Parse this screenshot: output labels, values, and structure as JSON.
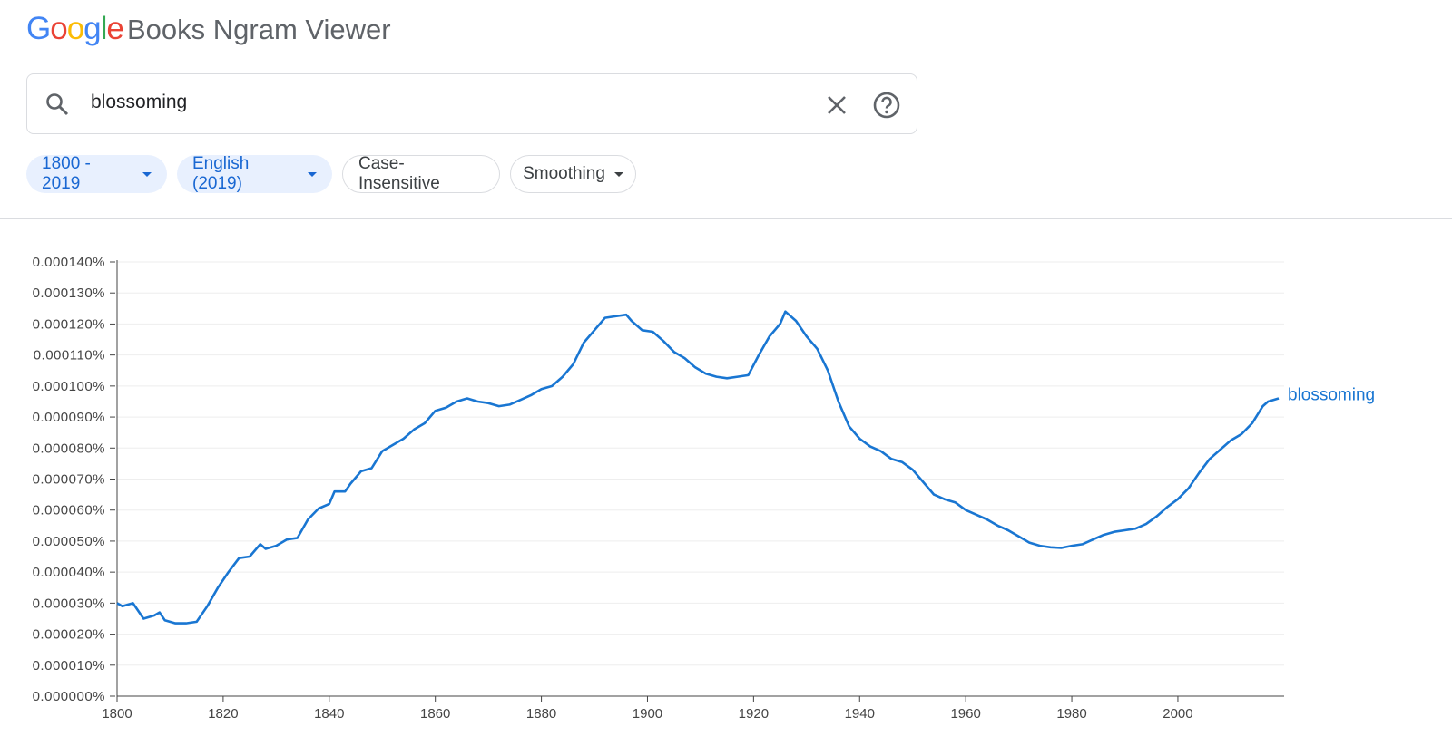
{
  "header": {
    "logo": "Google",
    "title": "Books Ngram Viewer"
  },
  "search": {
    "query": "blossoming"
  },
  "filters": [
    "1800 - 2019",
    "English (2019)",
    "Case-Insensitive",
    "Smoothing"
  ],
  "chart_data": {
    "type": "line",
    "x": [
      1800,
      1801,
      1803,
      1805,
      1807,
      1808,
      1809,
      1811,
      1813,
      1815,
      1817,
      1819,
      1821,
      1823,
      1825,
      1827,
      1828,
      1830,
      1832,
      1834,
      1836,
      1838,
      1840,
      1841,
      1843,
      1844,
      1846,
      1848,
      1850,
      1852,
      1854,
      1856,
      1858,
      1860,
      1862,
      1864,
      1866,
      1868,
      1870,
      1872,
      1874,
      1876,
      1878,
      1880,
      1882,
      1884,
      1886,
      1888,
      1890,
      1892,
      1894,
      1896,
      1897,
      1899,
      1901,
      1903,
      1905,
      1907,
      1909,
      1911,
      1913,
      1915,
      1917,
      1919,
      1921,
      1923,
      1925,
      1926,
      1928,
      1930,
      1932,
      1934,
      1936,
      1938,
      1940,
      1942,
      1944,
      1946,
      1948,
      1950,
      1952,
      1954,
      1956,
      1958,
      1960,
      1962,
      1964,
      1966,
      1968,
      1970,
      1972,
      1974,
      1976,
      1978,
      1980,
      1982,
      1984,
      1986,
      1988,
      1990,
      1992,
      1994,
      1996,
      1998,
      2000,
      2002,
      2004,
      2006,
      2008,
      2010,
      2012,
      2014,
      2016,
      2017,
      2019
    ],
    "series": [
      {
        "name": "blossoming",
        "color": "#1976d2",
        "values": [
          3e-05,
          2.9e-05,
          3e-05,
          2.5e-05,
          2.6e-05,
          2.7e-05,
          2.45e-05,
          2.35e-05,
          2.35e-05,
          2.4e-05,
          2.9e-05,
          3.5e-05,
          4e-05,
          4.45e-05,
          4.5e-05,
          4.9e-05,
          4.75e-05,
          4.85e-05,
          5.05e-05,
          5.1e-05,
          5.7e-05,
          6.05e-05,
          6.2e-05,
          6.6e-05,
          6.6e-05,
          6.85e-05,
          7.25e-05,
          7.35e-05,
          7.9e-05,
          8.1e-05,
          8.3e-05,
          8.6e-05,
          8.8e-05,
          9.2e-05,
          9.3e-05,
          9.5e-05,
          9.6e-05,
          9.5e-05,
          9.45e-05,
          9.35e-05,
          9.4e-05,
          9.55e-05,
          9.7e-05,
          9.9e-05,
          0.0001,
          0.000103,
          0.000107,
          0.000114,
          0.000118,
          0.000122,
          0.0001225,
          0.000123,
          0.000121,
          0.000118,
          0.0001175,
          0.0001145,
          0.000111,
          0.000109,
          0.000106,
          0.000104,
          0.000103,
          0.0001025,
          0.000103,
          0.0001035,
          0.00011,
          0.000116,
          0.00012,
          0.000124,
          0.000121,
          0.000116,
          0.000112,
          0.000105,
          9.5e-05,
          8.7e-05,
          8.3e-05,
          8.05e-05,
          7.9e-05,
          7.65e-05,
          7.55e-05,
          7.3e-05,
          6.9e-05,
          6.5e-05,
          6.35e-05,
          6.25e-05,
          6e-05,
          5.85e-05,
          5.7e-05,
          5.5e-05,
          5.35e-05,
          5.15e-05,
          4.95e-05,
          4.85e-05,
          4.8e-05,
          4.78e-05,
          4.85e-05,
          4.9e-05,
          5.05e-05,
          5.2e-05,
          5.3e-05,
          5.35e-05,
          5.4e-05,
          5.55e-05,
          5.8e-05,
          6.1e-05,
          6.35e-05,
          6.7e-05,
          7.2e-05,
          7.65e-05,
          7.95e-05,
          8.25e-05,
          8.45e-05,
          8.8e-05,
          9.35e-05,
          9.5e-05,
          9.6e-05
        ]
      }
    ],
    "xlim": [
      1800,
      2019
    ],
    "xticks": [
      1800,
      1820,
      1840,
      1860,
      1880,
      1900,
      1920,
      1940,
      1960,
      1980,
      2000
    ],
    "ylim": [
      0,
      0.00014
    ],
    "yticks": [
      {
        "value": 0,
        "label": "0.000000%"
      },
      {
        "value": 1e-05,
        "label": "0.000010%"
      },
      {
        "value": 2e-05,
        "label": "0.000020%"
      },
      {
        "value": 3e-05,
        "label": "0.000030%"
      },
      {
        "value": 4e-05,
        "label": "0.000040%"
      },
      {
        "value": 5e-05,
        "label": "0.000050%"
      },
      {
        "value": 6e-05,
        "label": "0.000060%"
      },
      {
        "value": 7e-05,
        "label": "0.000070%"
      },
      {
        "value": 8e-05,
        "label": "0.000080%"
      },
      {
        "value": 9e-05,
        "label": "0.000090%"
      },
      {
        "value": 0.0001,
        "label": "0.000100%"
      },
      {
        "value": 0.00011,
        "label": "0.000110%"
      },
      {
        "value": 0.00012,
        "label": "0.000120%"
      },
      {
        "value": 0.00013,
        "label": "0.000130%"
      },
      {
        "value": 0.00014,
        "label": "0.000140%"
      }
    ],
    "grid": true
  }
}
